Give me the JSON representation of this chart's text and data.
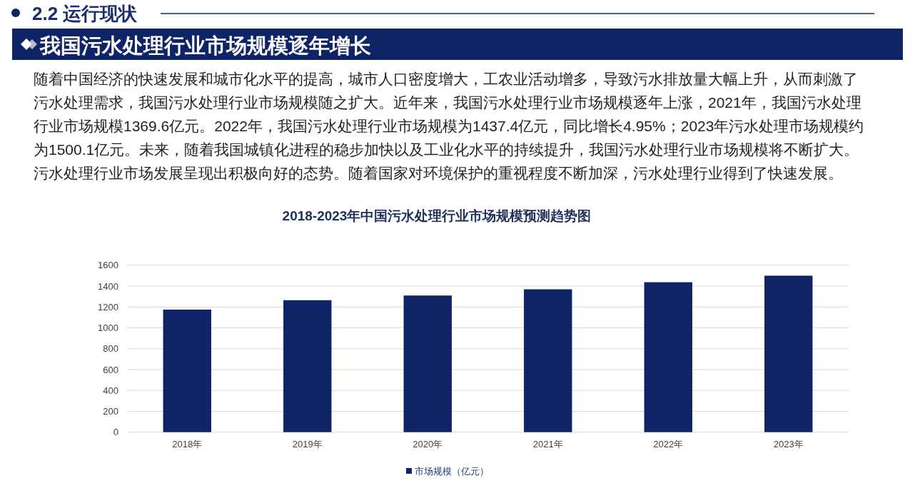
{
  "chart_data": {
    "type": "bar",
    "title": "2018-2023年中国污水处理行业市场规模预测趋势图",
    "annotations": [
      "2.2 运行现状",
      "我国污水处理行业市场规模逐年增长",
      "随着中国经济的快速发展和城市化水平的提高，城市人口密度增大，工农业活动增多，导致污水排放量大幅上升，从而刺激了",
      "污水处理需求，我国污水处理行业市场规模随之扩大。近年来，我国污水处理行业市场规模逐年上涨，2021年，我国污水处理",
      "行业市场规模1369.6亿元。2022年，我国污水处理行业市场规模为1437.4亿元，同比增长4.95%；2023年污水处理市场规模约",
      "为1500.1亿元。未来，随着我国城镇化进程的稳步加快以及工业化水平的持续提升，我国污水处理行业市场规模将不断扩大。",
      "污水处理行业市场发展呈现出积极向好的态势。随着国家对环境保护的重视程度不断加深，污水处理行业得到了快速发展。"
    ],
    "categories": [
      "2018年",
      "2019年",
      "2020年",
      "2021年",
      "2022年",
      "2023年"
    ],
    "series": [
      {
        "name": "市场规模（亿元）",
        "color": "#0e2466",
        "values": [
          1175,
          1265,
          1310,
          1369.6,
          1437.4,
          1500.1
        ]
      }
    ],
    "ylim": [
      0,
      1600
    ],
    "yticks": [
      0,
      200,
      400,
      600,
      800,
      1000,
      1200,
      1400,
      1600
    ],
    "grid": "y",
    "legend": "bottom"
  }
}
